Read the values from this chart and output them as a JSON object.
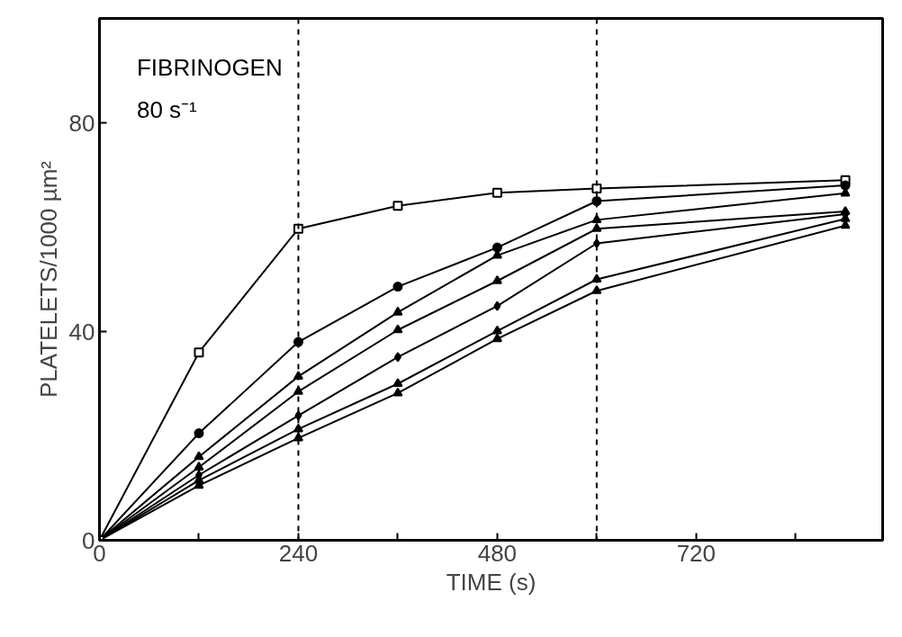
{
  "chart_data": {
    "type": "line",
    "xlabel": "TIME (s)",
    "ylabel": "PLATELETS/1000 µm²",
    "annotations": [
      "FIBRINOGEN",
      "80 s⁻¹"
    ],
    "x": [
      0,
      120,
      240,
      360,
      480,
      600,
      900
    ],
    "series": [
      {
        "color": "#000000",
        "marker": "square",
        "values": [
          0,
          36,
          59.7,
          64.1,
          66.6,
          67.4,
          69
        ]
      },
      {
        "color": "#000000",
        "marker": "circle",
        "values": [
          0,
          20.5,
          38,
          48.6,
          56.1,
          65,
          68
        ]
      },
      {
        "color": "#000000",
        "marker": "triangle",
        "values": [
          0,
          16,
          31.4,
          43.7,
          54.6,
          61.4,
          66.5
        ]
      },
      {
        "color": "#000000",
        "marker": "triangle",
        "values": [
          0,
          14,
          28.5,
          40.3,
          49.7,
          59.7,
          63
        ]
      },
      {
        "color": "#000000",
        "marker": "diamond",
        "values": [
          0,
          12.5,
          23.9,
          35.1,
          44.9,
          56.9,
          62.5
        ]
      },
      {
        "color": "#000000",
        "marker": "triangle",
        "values": [
          0,
          11.5,
          21.3,
          30,
          40.1,
          50,
          61.6
        ]
      },
      {
        "color": "#000000",
        "marker": "triangle",
        "values": [
          0,
          10.5,
          19.6,
          28.2,
          38.6,
          47.8,
          60.3
        ]
      }
    ],
    "ref_lines": [
      {
        "axis": "x",
        "value": 240,
        "line_style": "dashed",
        "color": "#000000"
      },
      {
        "axis": "x",
        "value": 600,
        "line_style": "dashed",
        "color": "#000000"
      }
    ],
    "xlim": [
      0,
      945
    ],
    "ylim": [
      0,
      100
    ],
    "xticks": [
      0,
      {
        "value": 120,
        "label": null
      },
      240,
      {
        "value": 360,
        "label": null
      },
      480,
      {
        "value": 600,
        "label": null
      },
      720,
      {
        "value": 840,
        "label": null
      }
    ],
    "yticks": [
      0,
      40,
      80
    ],
    "grid": false,
    "line_style": "solid"
  }
}
